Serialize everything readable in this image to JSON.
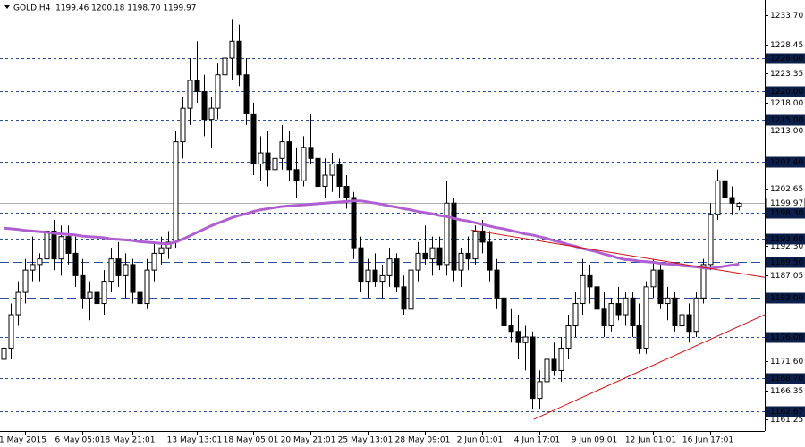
{
  "chart_data": {
    "type": "candlestick",
    "header": "GOLD,H4  1199.46 1200.18 1198.70 1199.97",
    "ylim": [
      1159.17,
      1236.42
    ],
    "xlim": [
      -0.5,
      106.6
    ],
    "yticks": [
      {
        "value": 1233.7,
        "label": "1233.70"
      },
      {
        "value": 1228.45,
        "label": "1228.45"
      },
      {
        "value": 1223.35,
        "label": "1223.35"
      },
      {
        "value": 1218,
        "label": "1218.00"
      },
      {
        "value": 1213,
        "label": "1213.00"
      },
      {
        "value": 1202.65,
        "label": "1202.65"
      },
      {
        "value": 1192.3,
        "label": "1192.30"
      },
      {
        "value": 1187.05,
        "label": "1187.05"
      },
      {
        "value": 1171.6,
        "label": "1171.60"
      },
      {
        "value": 1166.35,
        "label": "1166.35"
      },
      {
        "value": 1161.25,
        "label": "1161.25"
      }
    ],
    "xticks": [
      {
        "value": 3,
        "label": "1 May 2015"
      },
      {
        "value": 11,
        "label": "6 May 05:01"
      },
      {
        "value": 18,
        "label": "8 May 21:01"
      },
      {
        "value": 27,
        "label": "13 May 13:01"
      },
      {
        "value": 35,
        "label": "18 May 05:01"
      },
      {
        "value": 43,
        "label": "20 May 21:01"
      },
      {
        "value": 51,
        "label": "25 May 13:01"
      },
      {
        "value": 59,
        "label": "28 May 09:01"
      },
      {
        "value": 67,
        "label": "2 Jun 01:01"
      },
      {
        "value": 75,
        "label": "4 Jun 17:01"
      },
      {
        "value": 83,
        "label": "9 Jun 09:01"
      },
      {
        "value": 91,
        "label": "12 Jun 01:01"
      },
      {
        "value": 99,
        "label": "16 Jun 17:01"
      }
    ],
    "levels": [
      {
        "value": 1226,
        "label": "1226.00",
        "style": "short"
      },
      {
        "value": 1220,
        "label": "1220.00",
        "style": "short"
      },
      {
        "value": 1215,
        "label": "1215.00",
        "style": "short"
      },
      {
        "value": 1207.4,
        "label": "1207.40",
        "style": "short"
      },
      {
        "value": 1199.97,
        "label": "1199.97",
        "style": "current"
      },
      {
        "value": 1198.3,
        "label": "1198.30",
        "style": "short"
      },
      {
        "value": 1193.6,
        "label": "1193.60",
        "style": "short"
      },
      {
        "value": 1189.5,
        "label": "1189.50",
        "style": "long"
      },
      {
        "value": 1183,
        "label": "1183.00",
        "style": "long"
      },
      {
        "value": 1176,
        "label": "1176.00",
        "style": "short"
      },
      {
        "value": 1168.7,
        "label": "1168.70",
        "style": "short"
      },
      {
        "value": 1162.67,
        "label": "1162.67",
        "style": "short"
      }
    ],
    "level_color": "#2a4d9c",
    "candle_color": "#000000",
    "ma_color": "#b05fd0",
    "trend_color": "#d01010",
    "trendlines": [
      {
        "x": [
          65.5,
          106.6
        ],
        "y": [
          1195.2,
          1186.7
        ]
      },
      {
        "x": [
          74.25,
          106.6
        ],
        "y": [
          1161.25,
          1180
        ]
      }
    ],
    "ohlc": [
      [
        1172,
        1176,
        1169,
        1174
      ],
      [
        1174,
        1182,
        1172,
        1180
      ],
      [
        1180,
        1186,
        1178,
        1184
      ],
      [
        1184,
        1190,
        1182,
        1188
      ],
      [
        1188,
        1194,
        1186,
        1189
      ],
      [
        1189,
        1191,
        1186,
        1190
      ],
      [
        1190,
        1198,
        1189,
        1195
      ],
      [
        1195,
        1197,
        1188,
        1190
      ],
      [
        1190,
        1196,
        1187,
        1194
      ],
      [
        1194,
        1196,
        1189,
        1191
      ],
      [
        1191,
        1194,
        1185,
        1187
      ],
      [
        1187,
        1190,
        1181,
        1183
      ],
      [
        1183,
        1186,
        1179,
        1184
      ],
      [
        1184,
        1187,
        1181,
        1182
      ],
      [
        1182,
        1188,
        1180,
        1186
      ],
      [
        1186,
        1192,
        1184,
        1190
      ],
      [
        1190,
        1193,
        1185,
        1187
      ],
      [
        1187,
        1191,
        1183,
        1189
      ],
      [
        1189,
        1190,
        1182,
        1184
      ],
      [
        1184,
        1187,
        1180,
        1182
      ],
      [
        1182,
        1190,
        1181,
        1188
      ],
      [
        1188,
        1193,
        1186,
        1191
      ],
      [
        1191,
        1194,
        1189,
        1192
      ],
      [
        1192,
        1195,
        1190,
        1193
      ],
      [
        1193,
        1213,
        1192,
        1211
      ],
      [
        1211,
        1219,
        1208,
        1217
      ],
      [
        1217,
        1226,
        1214,
        1222
      ],
      [
        1222,
        1229,
        1218,
        1220
      ],
      [
        1220,
        1223,
        1212,
        1215
      ],
      [
        1215,
        1219,
        1210,
        1217
      ],
      [
        1217,
        1225,
        1215,
        1223
      ],
      [
        1223,
        1228,
        1219,
        1226
      ],
      [
        1226,
        1233,
        1222,
        1229
      ],
      [
        1229,
        1232,
        1221,
        1223
      ],
      [
        1223,
        1226,
        1214,
        1216
      ],
      [
        1216,
        1218,
        1205,
        1207
      ],
      [
        1207,
        1212,
        1204,
        1209
      ],
      [
        1209,
        1213,
        1203,
        1206
      ],
      [
        1206,
        1211,
        1202,
        1208
      ],
      [
        1208,
        1214,
        1206,
        1211
      ],
      [
        1211,
        1213,
        1204,
        1206
      ],
      [
        1206,
        1210,
        1201,
        1204
      ],
      [
        1204,
        1212,
        1203,
        1210
      ],
      [
        1210,
        1216,
        1207,
        1208
      ],
      [
        1208,
        1211,
        1202,
        1203
      ],
      [
        1203,
        1208,
        1201,
        1205
      ],
      [
        1205,
        1209,
        1202,
        1207
      ],
      [
        1207,
        1208,
        1201,
        1203
      ],
      [
        1203,
        1205,
        1199,
        1201
      ],
      [
        1201,
        1202,
        1190,
        1192
      ],
      [
        1192,
        1194,
        1184,
        1186
      ],
      [
        1186,
        1190,
        1183,
        1188
      ],
      [
        1188,
        1191,
        1185,
        1186
      ],
      [
        1186,
        1189,
        1183,
        1187
      ],
      [
        1187,
        1192,
        1185,
        1190
      ],
      [
        1190,
        1191,
        1184,
        1185
      ],
      [
        1185,
        1187,
        1180,
        1181
      ],
      [
        1181,
        1189,
        1180,
        1188
      ],
      [
        1188,
        1193,
        1186,
        1191
      ],
      [
        1191,
        1196,
        1189,
        1190
      ],
      [
        1190,
        1194,
        1187,
        1192
      ],
      [
        1192,
        1194,
        1188,
        1189
      ],
      [
        1189,
        1204,
        1187,
        1200
      ],
      [
        1200,
        1201,
        1186,
        1188
      ],
      [
        1188,
        1192,
        1185,
        1191
      ],
      [
        1191,
        1194,
        1188,
        1190
      ],
      [
        1190,
        1196,
        1189,
        1195
      ],
      [
        1195,
        1197,
        1191,
        1193
      ],
      [
        1193,
        1195,
        1186,
        1188
      ],
      [
        1188,
        1190,
        1181,
        1183
      ],
      [
        1183,
        1185,
        1177,
        1178
      ],
      [
        1178,
        1181,
        1175,
        1177
      ],
      [
        1177,
        1180,
        1172,
        1175
      ],
      [
        1175,
        1178,
        1170,
        1176
      ],
      [
        1176,
        1177,
        1163,
        1165
      ],
      [
        1165,
        1170,
        1163,
        1168
      ],
      [
        1168,
        1174,
        1166,
        1172
      ],
      [
        1172,
        1175,
        1169,
        1170
      ],
      [
        1170,
        1176,
        1168,
        1174
      ],
      [
        1174,
        1180,
        1172,
        1178
      ],
      [
        1178,
        1184,
        1176,
        1182
      ],
      [
        1182,
        1190,
        1180,
        1187
      ],
      [
        1187,
        1189,
        1182,
        1185
      ],
      [
        1185,
        1187,
        1179,
        1181
      ],
      [
        1181,
        1184,
        1176,
        1178
      ],
      [
        1178,
        1183,
        1177,
        1182
      ],
      [
        1182,
        1185,
        1179,
        1180
      ],
      [
        1180,
        1184,
        1178,
        1183
      ],
      [
        1183,
        1184,
        1176,
        1178
      ],
      [
        1178,
        1182,
        1173,
        1174
      ],
      [
        1174,
        1186,
        1173,
        1185
      ],
      [
        1185,
        1190,
        1183,
        1188
      ],
      [
        1188,
        1189,
        1181,
        1182
      ],
      [
        1182,
        1185,
        1179,
        1183
      ],
      [
        1183,
        1184,
        1177,
        1178
      ],
      [
        1178,
        1181,
        1176,
        1180
      ],
      [
        1180,
        1182,
        1175,
        1177
      ],
      [
        1177,
        1184,
        1176,
        1183
      ],
      [
        1183,
        1190,
        1182,
        1189
      ],
      [
        1189,
        1200,
        1188,
        1198
      ],
      [
        1198,
        1206,
        1197,
        1204
      ],
      [
        1204,
        1205,
        1199,
        1201
      ],
      [
        1201,
        1203,
        1198,
        1200
      ],
      [
        1199.46,
        1200.18,
        1198.7,
        1199.97
      ]
    ],
    "ma": [
      1195.5,
      1195.4,
      1195.3,
      1195.1,
      1195.0,
      1194.9,
      1194.8,
      1194.6,
      1194.5,
      1194.4,
      1194.3,
      1194.1,
      1194.0,
      1193.9,
      1193.8,
      1193.6,
      1193.5,
      1193.4,
      1193.3,
      1193.1,
      1193.0,
      1192.9,
      1192.8,
      1192.7,
      1193.0,
      1193.5,
      1194.1,
      1194.7,
      1195.3,
      1195.9,
      1196.4,
      1196.9,
      1197.4,
      1197.8,
      1198.1,
      1198.5,
      1198.8,
      1199.0,
      1199.2,
      1199.4,
      1199.5,
      1199.6,
      1199.7,
      1199.8,
      1199.9,
      1200.0,
      1200.1,
      1200.2,
      1200.3,
      1200.4,
      1200.4,
      1200.2,
      1200.0,
      1199.8,
      1199.5,
      1199.3,
      1199.0,
      1198.8,
      1198.5,
      1198.3,
      1198.1,
      1197.8,
      1197.6,
      1197.3,
      1197.0,
      1196.8,
      1196.5,
      1196.2,
      1195.9,
      1195.6,
      1195.4,
      1195.1,
      1194.8,
      1194.5,
      1194.3,
      1194.0,
      1193.7,
      1193.3,
      1193.0,
      1192.6,
      1192.3,
      1191.9,
      1191.6,
      1191.3,
      1190.9,
      1190.6,
      1190.2,
      1189.9,
      1189.8,
      1189.6,
      1189.5,
      1189.4,
      1189.2,
      1189.1,
      1189.0,
      1188.8,
      1188.7,
      1188.6,
      1188.4,
      1188.3,
      1188.5,
      1188.7,
      1188.9,
      1189.1
    ]
  }
}
